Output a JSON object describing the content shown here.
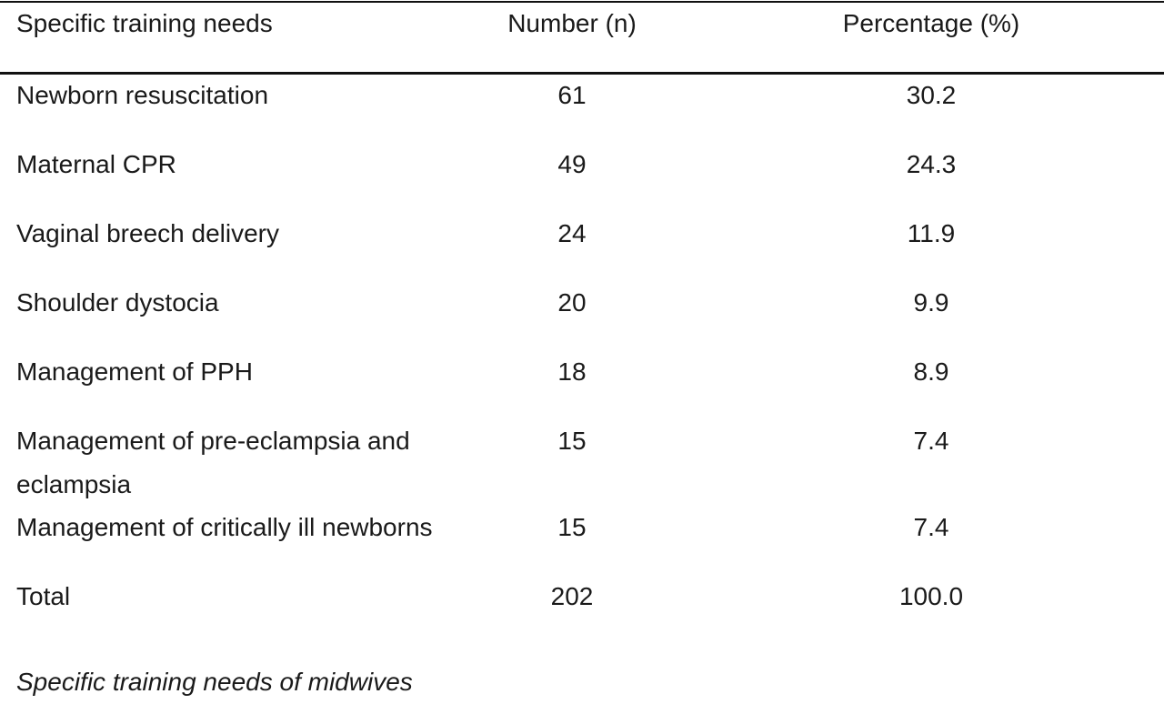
{
  "table": {
    "headers": [
      "Specific training needs",
      "Number (n)",
      "Percentage (%)"
    ],
    "rows": [
      {
        "need": "Newborn resuscitation",
        "number": "61",
        "percentage": "30.2"
      },
      {
        "need": "Maternal CPR",
        "number": "49",
        "percentage": "24.3"
      },
      {
        "need": "Vaginal breech delivery",
        "number": "24",
        "percentage": "11.9"
      },
      {
        "need": "Shoulder dystocia",
        "number": "20",
        "percentage": "9.9"
      },
      {
        "need": "Management of PPH",
        "number": "18",
        "percentage": "8.9"
      },
      {
        "need": "Management of pre-eclampsia and eclampsia",
        "number": "15",
        "percentage": "7.4"
      },
      {
        "need": "Management of critically ill newborns",
        "number": "15",
        "percentage": "7.4"
      },
      {
        "need": "Total",
        "number": "202",
        "percentage": "100.0"
      }
    ]
  },
  "caption": "Specific training needs of midwives"
}
